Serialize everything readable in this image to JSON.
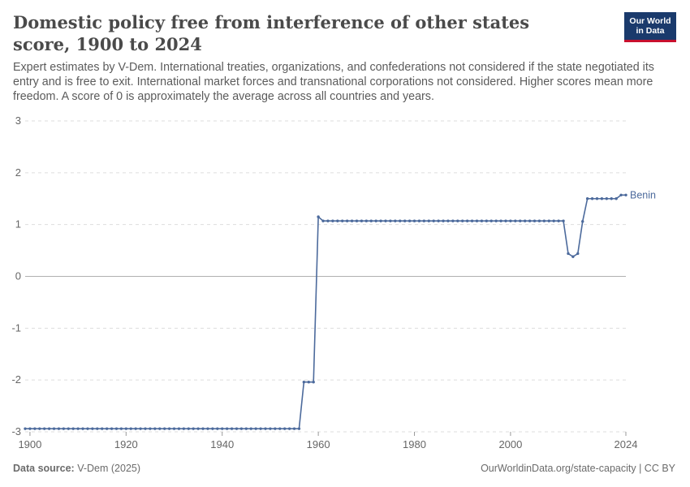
{
  "header": {
    "title": "Domestic policy free from interference of other states score, 1900 to 2024",
    "subtitle": "Expert estimates by V-Dem. International treaties, organizations, and confederations not considered if the state negotiated its entry and is free to exit. International market forces and transnational corporations not considered. Higher scores mean more freedom. A score of 0 is approximately the average across all countries and years.",
    "logo_line1": "Our World",
    "logo_line2": "in Data"
  },
  "footer": {
    "source_label": "Data source:",
    "source_value": "V-Dem (2025)",
    "url": "OurWorldinData.org/state-capacity | CC BY"
  },
  "colors": {
    "series": "#4c6a9c",
    "grid": "#dddddd",
    "zero_line": "#b0b0b0",
    "logo_bg": "#1a3a6c",
    "logo_accent": "#c8102e"
  },
  "chart_data": {
    "type": "line",
    "title": "Domestic policy free from interference of other states score, 1900 to 2024",
    "xlim": [
      1899,
      2024
    ],
    "ylim": [
      -3,
      3
    ],
    "x_ticks": [
      1900,
      1920,
      1940,
      1960,
      1980,
      2000,
      2024
    ],
    "y_ticks": [
      -3,
      -2,
      -1,
      0,
      1,
      2,
      3
    ],
    "y_tick_labels": [
      "-3",
      "-2",
      "-1",
      "0",
      "1",
      "2",
      "3"
    ],
    "x_tick_labels": [
      "1900",
      "1920",
      "1940",
      "1960",
      "1980",
      "2000",
      "2024"
    ],
    "grid": "horizontal dashed",
    "series": [
      {
        "name": "Benin",
        "points": [
          [
            1899,
            -2.94
          ],
          [
            1900,
            -2.94
          ],
          [
            1901,
            -2.94
          ],
          [
            1902,
            -2.94
          ],
          [
            1903,
            -2.94
          ],
          [
            1904,
            -2.94
          ],
          [
            1905,
            -2.94
          ],
          [
            1906,
            -2.94
          ],
          [
            1907,
            -2.94
          ],
          [
            1908,
            -2.94
          ],
          [
            1909,
            -2.94
          ],
          [
            1910,
            -2.94
          ],
          [
            1911,
            -2.94
          ],
          [
            1912,
            -2.94
          ],
          [
            1913,
            -2.94
          ],
          [
            1914,
            -2.94
          ],
          [
            1915,
            -2.94
          ],
          [
            1916,
            -2.94
          ],
          [
            1917,
            -2.94
          ],
          [
            1918,
            -2.94
          ],
          [
            1919,
            -2.94
          ],
          [
            1920,
            -2.94
          ],
          [
            1921,
            -2.94
          ],
          [
            1922,
            -2.94
          ],
          [
            1923,
            -2.94
          ],
          [
            1924,
            -2.94
          ],
          [
            1925,
            -2.94
          ],
          [
            1926,
            -2.94
          ],
          [
            1927,
            -2.94
          ],
          [
            1928,
            -2.94
          ],
          [
            1929,
            -2.94
          ],
          [
            1930,
            -2.94
          ],
          [
            1931,
            -2.94
          ],
          [
            1932,
            -2.94
          ],
          [
            1933,
            -2.94
          ],
          [
            1934,
            -2.94
          ],
          [
            1935,
            -2.94
          ],
          [
            1936,
            -2.94
          ],
          [
            1937,
            -2.94
          ],
          [
            1938,
            -2.94
          ],
          [
            1939,
            -2.94
          ],
          [
            1940,
            -2.94
          ],
          [
            1941,
            -2.94
          ],
          [
            1942,
            -2.94
          ],
          [
            1943,
            -2.94
          ],
          [
            1944,
            -2.94
          ],
          [
            1945,
            -2.94
          ],
          [
            1946,
            -2.94
          ],
          [
            1947,
            -2.94
          ],
          [
            1948,
            -2.94
          ],
          [
            1949,
            -2.94
          ],
          [
            1950,
            -2.94
          ],
          [
            1951,
            -2.94
          ],
          [
            1952,
            -2.94
          ],
          [
            1953,
            -2.94
          ],
          [
            1954,
            -2.94
          ],
          [
            1955,
            -2.94
          ],
          [
            1956,
            -2.94
          ],
          [
            1957,
            -2.04
          ],
          [
            1958,
            -2.04
          ],
          [
            1959,
            -2.04
          ],
          [
            1960,
            1.15
          ],
          [
            1961,
            1.07
          ],
          [
            1962,
            1.07
          ],
          [
            1963,
            1.07
          ],
          [
            1964,
            1.07
          ],
          [
            1965,
            1.07
          ],
          [
            1966,
            1.07
          ],
          [
            1967,
            1.07
          ],
          [
            1968,
            1.07
          ],
          [
            1969,
            1.07
          ],
          [
            1970,
            1.07
          ],
          [
            1971,
            1.07
          ],
          [
            1972,
            1.07
          ],
          [
            1973,
            1.07
          ],
          [
            1974,
            1.07
          ],
          [
            1975,
            1.07
          ],
          [
            1976,
            1.07
          ],
          [
            1977,
            1.07
          ],
          [
            1978,
            1.07
          ],
          [
            1979,
            1.07
          ],
          [
            1980,
            1.07
          ],
          [
            1981,
            1.07
          ],
          [
            1982,
            1.07
          ],
          [
            1983,
            1.07
          ],
          [
            1984,
            1.07
          ],
          [
            1985,
            1.07
          ],
          [
            1986,
            1.07
          ],
          [
            1987,
            1.07
          ],
          [
            1988,
            1.07
          ],
          [
            1989,
            1.07
          ],
          [
            1990,
            1.07
          ],
          [
            1991,
            1.07
          ],
          [
            1992,
            1.07
          ],
          [
            1993,
            1.07
          ],
          [
            1994,
            1.07
          ],
          [
            1995,
            1.07
          ],
          [
            1996,
            1.07
          ],
          [
            1997,
            1.07
          ],
          [
            1998,
            1.07
          ],
          [
            1999,
            1.07
          ],
          [
            2000,
            1.07
          ],
          [
            2001,
            1.07
          ],
          [
            2002,
            1.07
          ],
          [
            2003,
            1.07
          ],
          [
            2004,
            1.07
          ],
          [
            2005,
            1.07
          ],
          [
            2006,
            1.07
          ],
          [
            2007,
            1.07
          ],
          [
            2008,
            1.07
          ],
          [
            2009,
            1.07
          ],
          [
            2010,
            1.07
          ],
          [
            2011,
            1.07
          ],
          [
            2012,
            0.44
          ],
          [
            2013,
            0.38
          ],
          [
            2014,
            0.44
          ],
          [
            2015,
            1.06
          ],
          [
            2016,
            1.5
          ],
          [
            2017,
            1.5
          ],
          [
            2018,
            1.5
          ],
          [
            2019,
            1.5
          ],
          [
            2020,
            1.5
          ],
          [
            2021,
            1.5
          ],
          [
            2022,
            1.5
          ],
          [
            2023,
            1.57
          ],
          [
            2024,
            1.57
          ]
        ]
      }
    ]
  }
}
